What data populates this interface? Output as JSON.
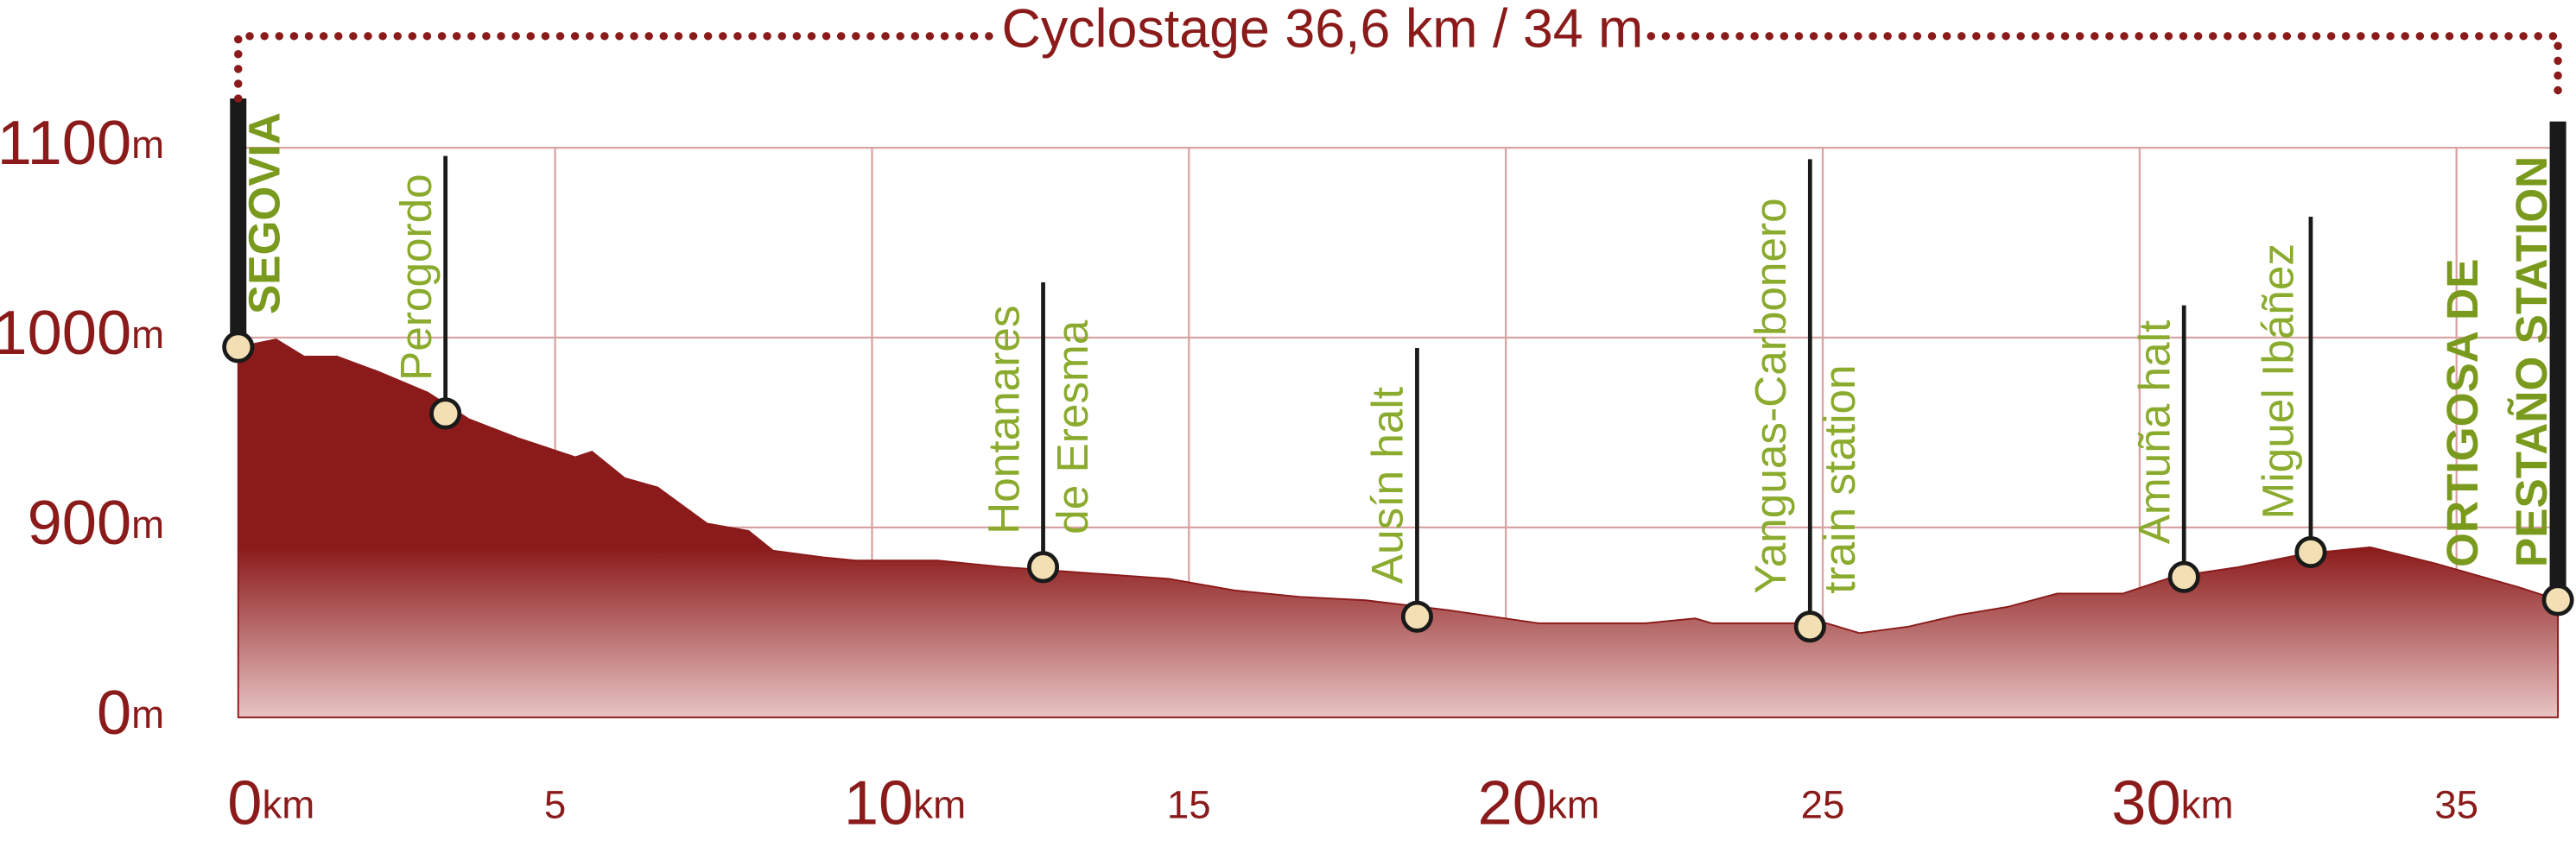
{
  "chart_data": {
    "type": "area",
    "title": "Cyclostage 36,6 km / 34 m",
    "color": "#8b1a1a",
    "grid": true,
    "x": [
      0,
      0.6,
      1.04,
      1.56,
      2.21,
      2.99,
      3.64,
      4.42,
      5.32,
      5.58,
      6.1,
      6.62,
      7.4,
      8.05,
      8.44,
      9.22,
      9.74,
      11.04,
      12.08,
      12.86,
      14.68,
      15.71,
      16.75,
      17.79,
      19.09,
      20.52,
      22.21,
      22.99,
      23.25,
      25.06,
      25.58,
      26.36,
      27.14,
      27.92,
      28.7,
      29.74,
      30.52,
      31.56,
      32.6,
      33.64,
      34.68,
      35.97,
      36.6
    ],
    "values": [
      995,
      999,
      990,
      990,
      982,
      971,
      957,
      947,
      937,
      940,
      926,
      921,
      902,
      884,
      790,
      759,
      743,
      743,
      712,
      696,
      657,
      602,
      571,
      555,
      508,
      446,
      446,
      469,
      446,
      446,
      399,
      430,
      485,
      524,
      587,
      587,
      665,
      712,
      775,
      806,
      728,
      618,
      556
    ],
    "xlim": [
      0,
      36.6
    ],
    "xticks": [
      {
        "value": 0,
        "label": "0km"
      },
      5,
      {
        "value": 10,
        "label": "10km"
      },
      15,
      {
        "value": 20,
        "label": "20km"
      },
      25,
      {
        "value": 30,
        "label": "30km"
      },
      35
    ],
    "ylim": [
      0,
      1100
    ],
    "yticks": [
      {
        "value": 0,
        "label": "0m"
      },
      {
        "value": 900,
        "label": "900m"
      },
      {
        "value": 1000,
        "label": "1000m"
      },
      {
        "value": 1100,
        "label": "1100m"
      }
    ],
    "stops": [
      {
        "lines": [
          "SEGOVIA"
        ],
        "x": 0,
        "elevation": 995
      },
      {
        "lines": [
          "Perogordo"
        ],
        "x": 3.27,
        "elevation": 960
      },
      {
        "lines": [
          "Hontanares",
          "de Eresma"
        ],
        "x": 12.7,
        "elevation": 712
      },
      {
        "lines": [
          "Ausín halt"
        ],
        "x": 18.6,
        "elevation": 477
      },
      {
        "lines": [
          "Yanguas-Carbonero",
          "train station"
        ],
        "x": 24.8,
        "elevation": 430
      },
      {
        "lines": [
          "Amuña halt"
        ],
        "x": 30.7,
        "elevation": 665
      },
      {
        "lines": [
          "Miguel Ibáñez"
        ],
        "x": 32.7,
        "elevation": 783
      },
      {
        "lines": [
          "ORTIGOSA DE",
          "PESTAÑO STATION"
        ],
        "x": 36.6,
        "elevation": 556
      }
    ]
  }
}
